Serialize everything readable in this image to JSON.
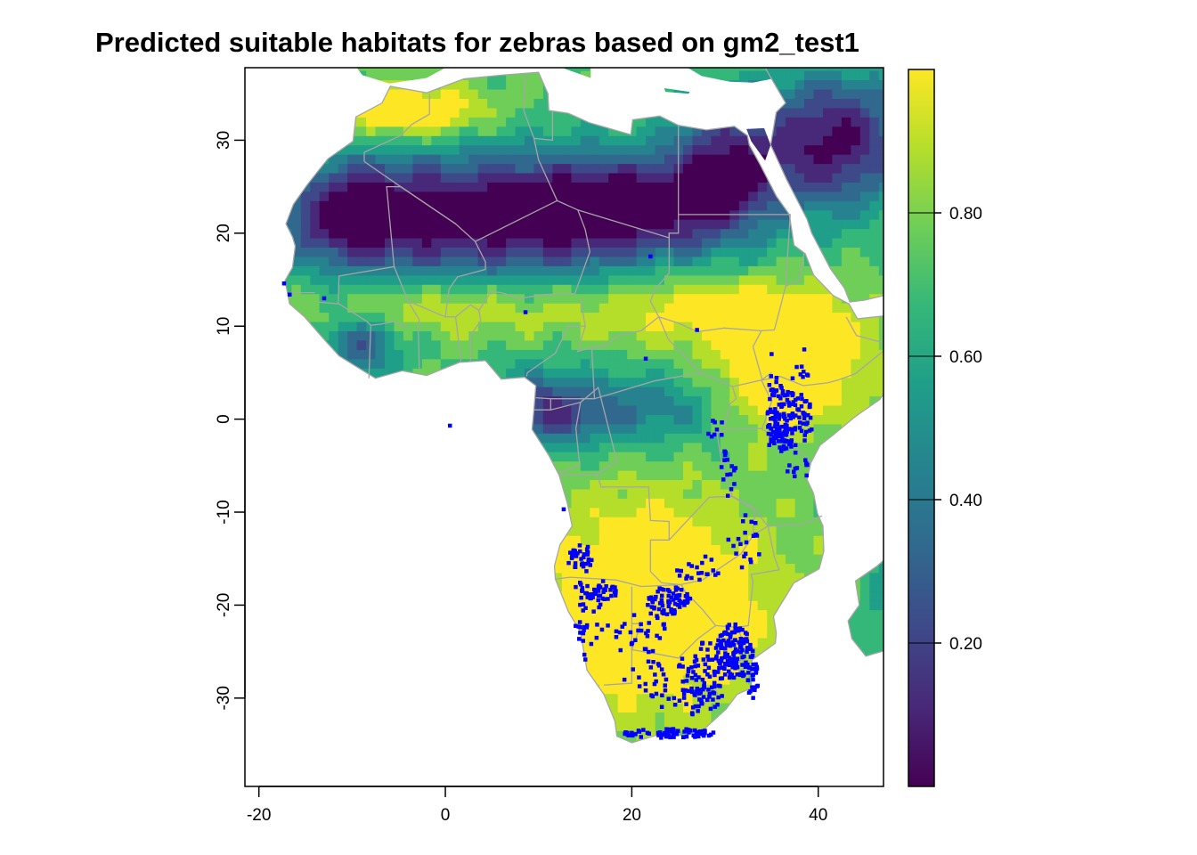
{
  "title": "Predicted suitable habitats for zebras based on gm2_test1",
  "colors": {
    "background": "#ffffff",
    "frame": "#000000",
    "country_border": "#a6a6a6",
    "occurrence_points": "#0000ff",
    "viridis": [
      "#440154",
      "#482878",
      "#3e4989",
      "#31688e",
      "#26828e",
      "#1f9e89",
      "#35b779",
      "#6ece58",
      "#b5de2b",
      "#fde725"
    ]
  },
  "map": {
    "x_ticks": [
      "-20",
      "0",
      "20",
      "40"
    ],
    "y_ticks": [
      "30",
      "20",
      "10",
      "0",
      "-10",
      "-20",
      "-30"
    ],
    "legend_ticks": [
      "0.80",
      "0.60",
      "0.40",
      "0.20"
    ],
    "occurrence_symbol": "square",
    "color_scale": "viridis",
    "legend_placement": "right"
  },
  "chart_data": {
    "type": "raster-map",
    "title": "Predicted suitable habitats for zebras based on gm2_test1",
    "xlim": [
      -21.5,
      47
    ],
    "ylim": [
      -39.5,
      37.8
    ],
    "x_ticks": [
      -20,
      0,
      20,
      40
    ],
    "y_ticks": [
      30,
      20,
      10,
      0,
      -10,
      -20,
      -30
    ],
    "color_scale": {
      "name": "viridis",
      "min": 0.0,
      "max": 1.0,
      "ticks": [
        0.2,
        0.4,
        0.6,
        0.8
      ]
    },
    "layers": [
      "predicted suitability raster",
      "country borders",
      "zebra occurrence points"
    ],
    "legend_placement": "right"
  }
}
